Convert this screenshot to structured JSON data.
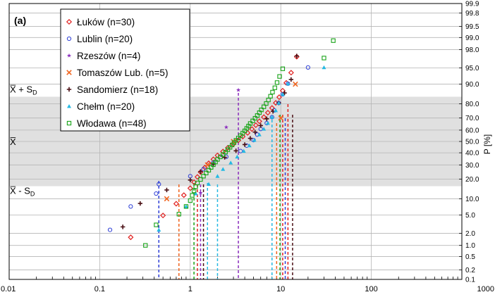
{
  "chart_data": {
    "type": "scatter",
    "panel_label": "(a)",
    "xlabel": "",
    "ylabel": "P [%]",
    "x_scale": "log",
    "y_scale": "probability",
    "xlim": [
      0.01,
      1000
    ],
    "ylim": [
      0.1,
      99.9
    ],
    "x_ticks": [
      "0.01",
      "0.1",
      "1",
      "10",
      "100",
      "1000"
    ],
    "y_ticks": [
      "0.1",
      "0.2",
      "0.5",
      "1.0",
      "2.0",
      "5.0",
      "10.0",
      "20.0",
      "30.0",
      "40.0",
      "50.0",
      "60.0",
      "70.0",
      "80.0",
      "90.0",
      "95.0",
      "98.0",
      "99.0",
      "99.5",
      "99.8",
      "99.9"
    ],
    "grid": true,
    "legend_position": "top-left",
    "band": {
      "from": 15.87,
      "to": 84.13,
      "color": "#e0e0e0"
    },
    "stat_labels": [
      {
        "text": "X̅ + S",
        "sub": "D",
        "p": 84.13
      },
      {
        "text": "X̅",
        "sub": "",
        "p": 50
      },
      {
        "text": "X̅ - S",
        "sub": "D",
        "p": 15.87
      }
    ],
    "series": [
      {
        "name": "Łuków (n=30)",
        "color": "#e0201f",
        "marker": "diamond",
        "x": [
          0.22,
          0.5,
          0.7,
          0.85,
          1.0,
          1.1,
          1.2,
          1.3,
          1.45,
          1.6,
          1.8,
          2.0,
          2.3,
          2.6,
          3.0,
          3.4,
          3.8,
          4.3,
          4.8,
          5.3,
          5.8,
          6.5,
          7.2,
          8.0,
          8.8,
          9.6,
          10.5,
          11.5,
          13.0,
          15.0
        ],
        "p": [
          1.6,
          4.9,
          8.2,
          11.5,
          14.8,
          18.1,
          21.4,
          24.7,
          28.0,
          31.3,
          34.5,
          37.8,
          41.1,
          44.4,
          47.7,
          51.0,
          54.3,
          57.6,
          60.9,
          64.2,
          67.4,
          70.7,
          74.0,
          77.3,
          80.6,
          83.9,
          87.2,
          90.5,
          93.8,
          97.1
        ]
      },
      {
        "name": "Lublin (n=20)",
        "color": "#2e3fd6",
        "marker": "circle",
        "x": [
          0.13,
          0.22,
          0.42,
          0.45,
          1.0,
          1.4,
          1.8,
          2.5,
          3.6,
          4.2,
          5.0,
          5.5,
          6.0,
          7.0,
          8.0,
          8.5,
          9.5,
          10.5,
          12.0,
          20.0
        ],
        "p": [
          2.4,
          7.3,
          12.2,
          17.0,
          21.9,
          26.8,
          31.7,
          36.6,
          41.5,
          46.3,
          51.2,
          56.1,
          61.0,
          65.9,
          70.7,
          75.6,
          80.5,
          85.4,
          90.2,
          95.1
        ]
      },
      {
        "name": "Rzeszów (n=4)",
        "color": "#8a2cbd",
        "marker": "star",
        "x": [
          1.3,
          2.2,
          2.5,
          3.4
        ],
        "p": [
          12.5,
          37.5,
          62.5,
          87.5
        ]
      },
      {
        "name": "Tomaszów Lub. (n=5)",
        "color": "#f0641e",
        "marker": "cross",
        "x": [
          0.55,
          1.55,
          3.0,
          10.0,
          14.5
        ],
        "p": [
          10.0,
          30.0,
          50.0,
          70.0,
          90.0
        ]
      },
      {
        "name": "Sandomierz (n=18)",
        "color": "#4a0f14",
        "marker": "plus",
        "x": [
          0.18,
          0.28,
          0.55,
          1.0,
          1.3,
          1.8,
          2.4,
          3.2,
          4.0,
          4.6,
          5.2,
          6.0,
          7.0,
          8.2,
          9.5,
          11.0,
          13.0,
          15.0
        ],
        "p": [
          2.8,
          8.3,
          13.9,
          19.4,
          25.0,
          30.6,
          36.1,
          41.7,
          47.2,
          52.8,
          58.3,
          63.9,
          69.4,
          75.0,
          80.6,
          86.1,
          91.7,
          97.2
        ]
      },
      {
        "name": "Chełm (n=20)",
        "color": "#25b9e3",
        "marker": "triangle",
        "x": [
          0.45,
          0.9,
          1.15,
          1.6,
          2.0,
          2.3,
          2.8,
          3.3,
          3.9,
          4.5,
          5.1,
          5.8,
          6.5,
          7.2,
          8.0,
          8.8,
          9.5,
          10.5,
          12.0,
          30.0
        ],
        "p": [
          2.4,
          7.3,
          12.2,
          17.0,
          21.9,
          26.8,
          31.7,
          36.6,
          41.5,
          46.3,
          51.2,
          56.1,
          61.0,
          65.9,
          70.7,
          75.6,
          80.5,
          85.4,
          90.2,
          95.1
        ]
      },
      {
        "name": "Włodawa (n=48)",
        "color": "#17a317",
        "marker": "square",
        "x": [
          0.32,
          0.42,
          0.75,
          0.9,
          1.0,
          1.05,
          1.1,
          1.15,
          1.2,
          1.3,
          1.4,
          1.5,
          1.6,
          1.7,
          1.8,
          1.9,
          2.0,
          2.15,
          2.3,
          2.45,
          2.6,
          2.75,
          2.9,
          3.05,
          3.2,
          3.4,
          3.6,
          3.8,
          4.0,
          4.2,
          4.4,
          4.6,
          4.9,
          5.2,
          5.5,
          5.8,
          6.1,
          6.5,
          6.9,
          7.3,
          7.7,
          8.1,
          8.6,
          9.1,
          9.7,
          10.5,
          30.0,
          38.0
        ],
        "p": [
          1.0,
          3.1,
          5.2,
          7.3,
          9.3,
          11.4,
          13.5,
          15.6,
          17.7,
          19.8,
          21.9,
          24.0,
          26.0,
          28.1,
          30.2,
          32.3,
          34.4,
          36.5,
          38.5,
          40.6,
          42.7,
          44.8,
          46.9,
          49.0,
          51.0,
          53.1,
          55.2,
          57.3,
          59.4,
          61.5,
          63.5,
          65.6,
          67.7,
          69.8,
          71.9,
          74.0,
          76.0,
          78.1,
          80.2,
          82.3,
          84.4,
          86.5,
          88.5,
          90.6,
          92.7,
          94.8,
          96.9,
          98.8
        ]
      }
    ],
    "percentile_lines": [
      {
        "x": 0.45,
        "color": "#2e3fd6"
      },
      {
        "x": 0.75,
        "color": "#f0641e"
      },
      {
        "x": 1.1,
        "color": "#17a317"
      },
      {
        "x": 1.2,
        "color": "#e0201f"
      },
      {
        "x": 1.3,
        "color": "#8a2cbd"
      },
      {
        "x": 1.4,
        "color": "#4a0f14"
      },
      {
        "x": 1.55,
        "color": "#25b9e3"
      },
      {
        "x": 2.0,
        "color": "#25b9e3"
      },
      {
        "x": 3.4,
        "color": "#8a2cbd"
      },
      {
        "x": 8.0,
        "color": "#25b9e3"
      },
      {
        "x": 9.0,
        "color": "#f0641e"
      },
      {
        "x": 9.8,
        "color": "#17a317"
      },
      {
        "x": 10.5,
        "color": "#e0201f"
      },
      {
        "x": 11.2,
        "color": "#2e3fd6"
      },
      {
        "x": 12.0,
        "color": "#e0201f"
      },
      {
        "x": 13.5,
        "color": "#4a0f14"
      }
    ]
  }
}
